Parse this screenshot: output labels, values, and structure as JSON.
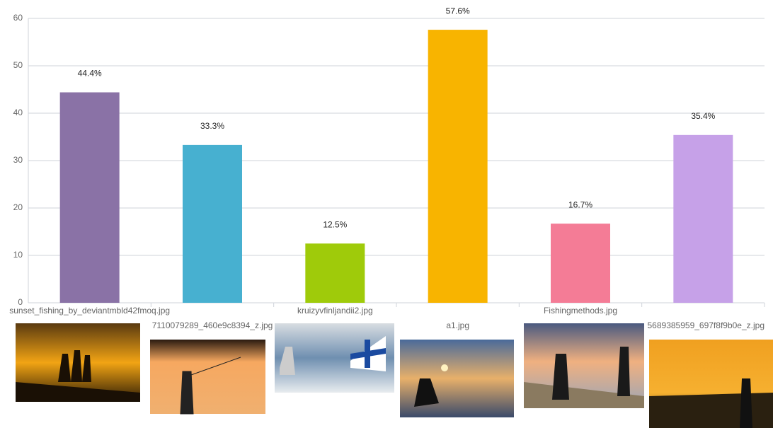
{
  "chart_data": {
    "type": "bar",
    "categories": [
      "sunset_fishing_by_deviantmbld42fmoq.jpg",
      "7110079289_460e9c8394_z.jpg",
      "kruizyvfinljandii2.jpg",
      "a1.jpg",
      "Fishingmethods.jpg",
      "5689385959_697f8f9b0e_z.jpg"
    ],
    "values": [
      44.4,
      33.3,
      12.5,
      57.6,
      16.7,
      35.4
    ],
    "value_labels": [
      "44.4%",
      "33.3%",
      "12.5%",
      "57.6%",
      "16.7%",
      "35.4%"
    ],
    "colors": [
      "#8a72a6",
      "#47b0d0",
      "#9fcb0a",
      "#f8b400",
      "#f47c96",
      "#c6a1e8"
    ],
    "ylim": [
      0,
      60
    ],
    "yticks": [
      0,
      10,
      20,
      30,
      40,
      50,
      60
    ],
    "grid": true
  }
}
